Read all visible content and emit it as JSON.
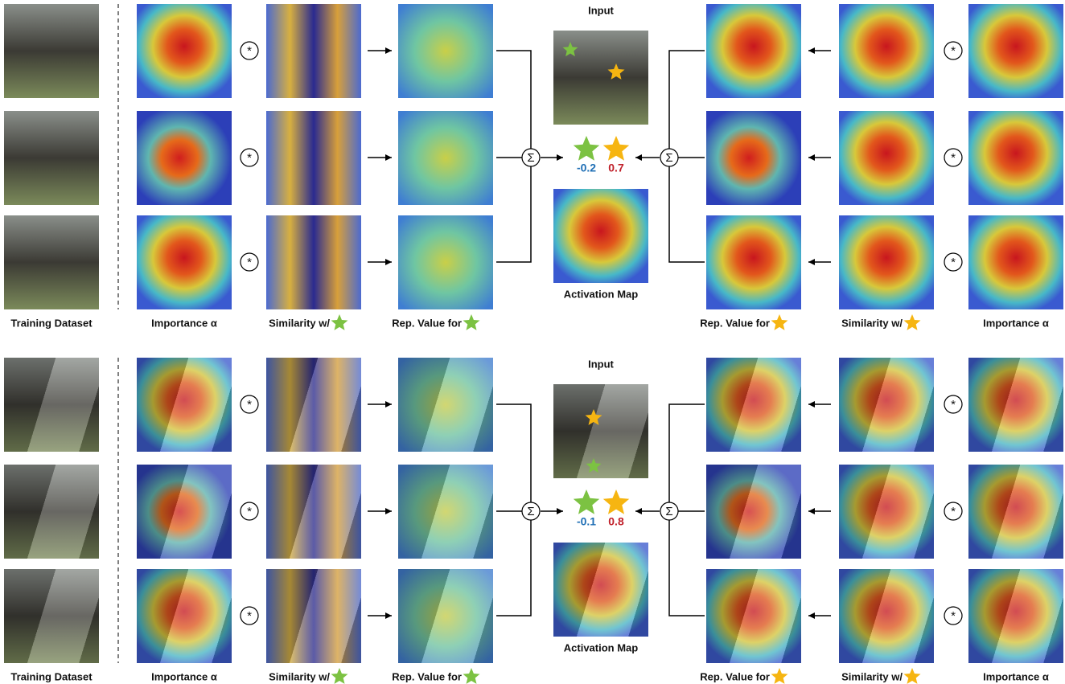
{
  "multiply_symbol": "*",
  "sum_symbol": "Σ",
  "panels": [
    {
      "input_label": "Input",
      "activation_label": "Activation Map",
      "green_score": -0.2,
      "gold_score": 0.7,
      "left_labels": [
        "Training Dataset",
        "Importance α",
        "Similarity w/",
        "Rep. Value for"
      ],
      "right_labels": [
        "Rep. Value for",
        "Similarity w/",
        "Importance α"
      ]
    },
    {
      "input_label": "Input",
      "activation_label": "Activation Map",
      "green_score": -0.1,
      "gold_score": 0.8,
      "left_labels": [
        "Training Dataset",
        "Importance α",
        "Similarity w/",
        "Rep. Value for"
      ],
      "right_labels": [
        "Rep. Value for",
        "Similarity w/",
        "Importance α"
      ]
    }
  ]
}
